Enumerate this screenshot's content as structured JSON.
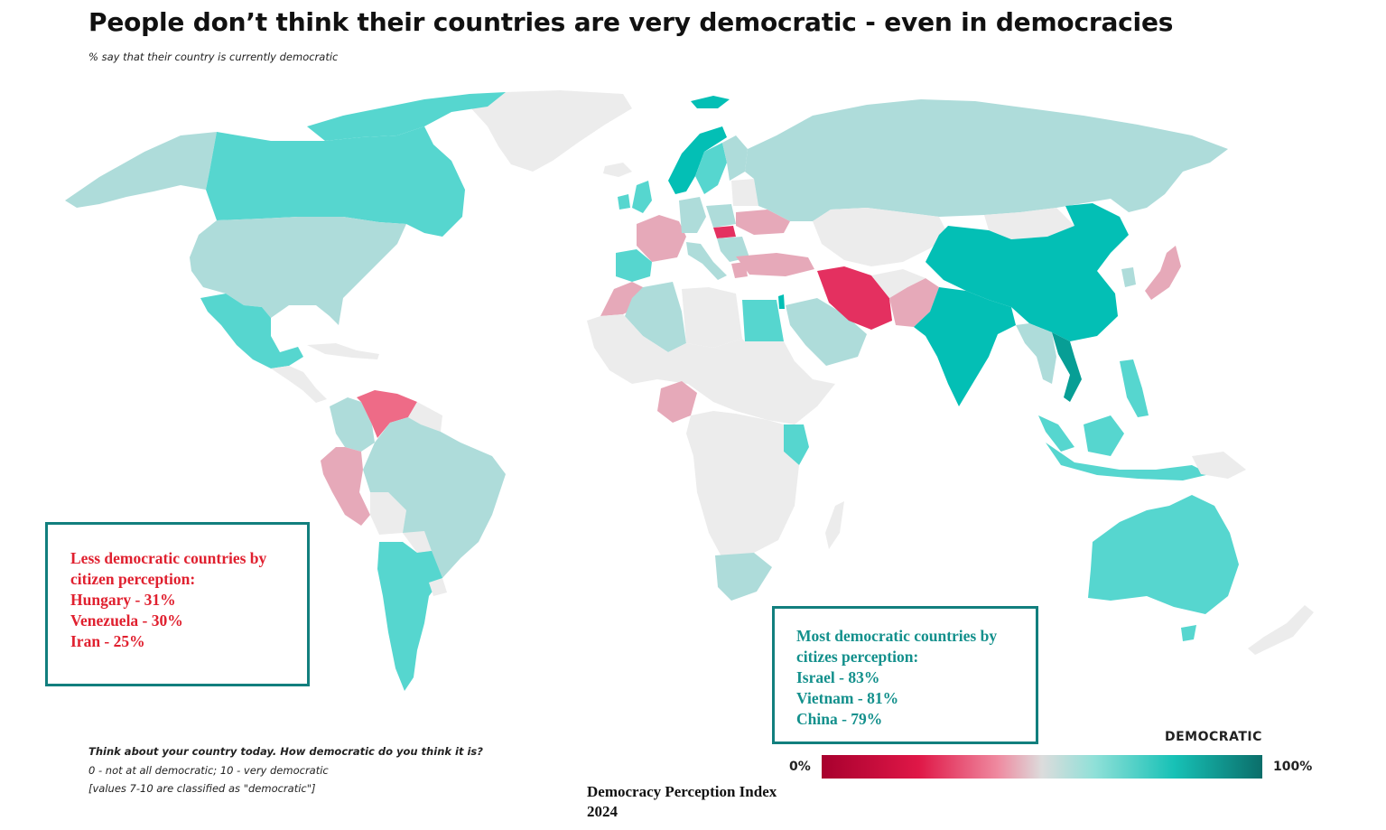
{
  "title": "People don’t think their countries are very democratic - even in democracies",
  "subtitle": "% say that their country is currently democratic",
  "colors": {
    "no_data": "#ececec",
    "light_teal": "#aedcda",
    "mid_teal": "#56d6cf",
    "dark_teal": "#03bfb5",
    "deepest_teal": "#079e95",
    "light_pink": "#e6a9b9",
    "mid_pink": "#ee6b87",
    "strong_pink": "#e43060",
    "box_border": "#127f7e",
    "less_text": "#e0202f",
    "most_text": "#13908c"
  },
  "less_box": {
    "lines": [
      "Less democratic countries by",
      "citizen perception:",
      "Hungary - 31%",
      "Venezuela - 30%",
      "Iran - 25%"
    ]
  },
  "most_box": {
    "lines": [
      "Most democratic countries by",
      "citizes perception:",
      "Israel - 83%",
      "Vietnam - 81%",
      "China - 79%"
    ]
  },
  "legend": {
    "title": "DEMOCRATIC",
    "min_label": "0%",
    "max_label": "100%"
  },
  "footnotes": {
    "question": "Think about your country today. How democratic do you think it is?",
    "scale": "0 - not at all democratic; 10 - very democratic",
    "classification": "[values 7-10 are classified as \"democratic\"]"
  },
  "source": {
    "line1": "Democracy Perception Index",
    "line2": "2024"
  },
  "highlighted_values": [
    {
      "country": "Hungary",
      "percent": 31
    },
    {
      "country": "Venezuela",
      "percent": 30
    },
    {
      "country": "Iran",
      "percent": 25
    },
    {
      "country": "Israel",
      "percent": 83
    },
    {
      "country": "Vietnam",
      "percent": 81
    },
    {
      "country": "China",
      "percent": 79
    }
  ]
}
